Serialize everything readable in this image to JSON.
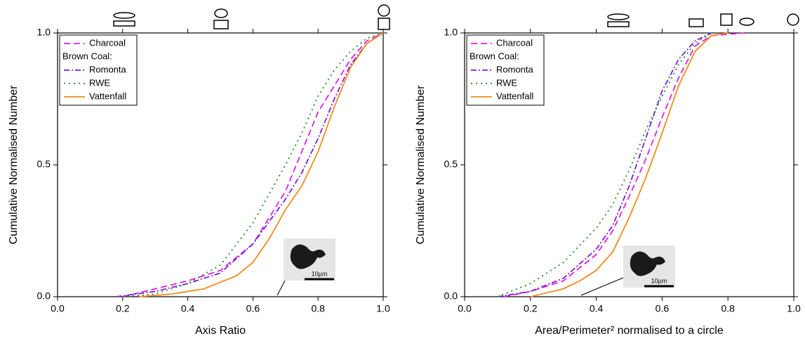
{
  "chart_data": [
    {
      "type": "line",
      "xlabel": "Axis Ratio",
      "ylabel": "Cumulative Normalised Number",
      "xlim": [
        0,
        1
      ],
      "ylim": [
        0,
        1
      ],
      "xticks": [
        {
          "value": 0,
          "label": "0.0"
        },
        0.2,
        0.4,
        0.6,
        0.8,
        {
          "value": 1,
          "label": "1.0"
        }
      ],
      "yticks": [
        {
          "value": 0,
          "label": "0.0"
        },
        0.5,
        {
          "value": 1,
          "label": "1.0"
        }
      ],
      "legend": "upper left",
      "legend_group_label": "Brown Coal:",
      "inset_scale_label": "10µm",
      "series": [
        {
          "name": "Charcoal",
          "color": "#e020e0",
          "dash": "dashed",
          "x": [
            0.2,
            0.3,
            0.4,
            0.5,
            0.6,
            0.7,
            0.75,
            0.8,
            0.85,
            0.9,
            0.95,
            1.0
          ],
          "values": [
            0,
            0.03,
            0.06,
            0.1,
            0.2,
            0.4,
            0.55,
            0.7,
            0.8,
            0.9,
            0.97,
            1.0
          ]
        },
        {
          "name": "Romonta",
          "color": "#7a1fe0",
          "dash": "dashdot",
          "x": [
            0.18,
            0.3,
            0.4,
            0.5,
            0.6,
            0.7,
            0.75,
            0.8,
            0.85,
            0.9,
            0.95,
            1.0
          ],
          "values": [
            0,
            0.02,
            0.05,
            0.09,
            0.2,
            0.37,
            0.47,
            0.6,
            0.75,
            0.88,
            0.96,
            1.0
          ]
        },
        {
          "name": "RWE",
          "color": "#1e8c1e",
          "dash": "dotted",
          "x": [
            0.2,
            0.3,
            0.4,
            0.5,
            0.6,
            0.7,
            0.75,
            0.8,
            0.85,
            0.9,
            0.95,
            1.0
          ],
          "values": [
            0,
            0.01,
            0.05,
            0.12,
            0.28,
            0.5,
            0.62,
            0.76,
            0.86,
            0.93,
            0.98,
            1.0
          ]
        },
        {
          "name": "Vattenfall",
          "color": "#f08c1e",
          "dash": "solid",
          "x": [
            0.25,
            0.35,
            0.45,
            0.55,
            0.6,
            0.65,
            0.7,
            0.75,
            0.8,
            0.85,
            0.9,
            0.95,
            1.0
          ],
          "values": [
            0,
            0.01,
            0.03,
            0.08,
            0.13,
            0.22,
            0.33,
            0.42,
            0.55,
            0.72,
            0.87,
            0.96,
            1.0
          ]
        }
      ]
    },
    {
      "type": "line",
      "xlabel": "Area/Perimeter² normalised to a circle",
      "ylabel": "Cumulative Normalised Number",
      "xlim": [
        0,
        1
      ],
      "ylim": [
        0,
        1
      ],
      "xticks": [
        {
          "value": 0,
          "label": "0.0"
        },
        0.2,
        0.4,
        0.6,
        0.8,
        {
          "value": 1,
          "label": "1.0"
        }
      ],
      "yticks": [
        {
          "value": 0,
          "label": "0.0"
        },
        0.5,
        {
          "value": 1,
          "label": "1.0"
        }
      ],
      "legend": "upper left",
      "legend_group_label": "Brown Coal:",
      "inset_scale_label": "10µm",
      "series": [
        {
          "name": "Charcoal",
          "color": "#e020e0",
          "dash": "dashed",
          "x": [
            0.12,
            0.2,
            0.3,
            0.4,
            0.45,
            0.5,
            0.55,
            0.6,
            0.65,
            0.7,
            0.75,
            0.85
          ],
          "values": [
            0,
            0.02,
            0.06,
            0.16,
            0.25,
            0.38,
            0.52,
            0.68,
            0.83,
            0.95,
            0.99,
            1.0
          ]
        },
        {
          "name": "Romonta",
          "color": "#7a1fe0",
          "dash": "dashdot",
          "x": [
            0.1,
            0.2,
            0.3,
            0.4,
            0.45,
            0.5,
            0.55,
            0.6,
            0.65,
            0.7,
            0.75
          ],
          "values": [
            0,
            0.02,
            0.07,
            0.18,
            0.27,
            0.42,
            0.6,
            0.78,
            0.9,
            0.97,
            1.0
          ]
        },
        {
          "name": "RWE",
          "color": "#1e8c1e",
          "dash": "dotted",
          "x": [
            0.1,
            0.2,
            0.3,
            0.4,
            0.45,
            0.5,
            0.55,
            0.6,
            0.65,
            0.7,
            0.75
          ],
          "values": [
            0,
            0.05,
            0.13,
            0.26,
            0.35,
            0.48,
            0.63,
            0.76,
            0.88,
            0.96,
            1.0
          ]
        },
        {
          "name": "Vattenfall",
          "color": "#f08c1e",
          "dash": "solid",
          "x": [
            0.2,
            0.3,
            0.35,
            0.4,
            0.45,
            0.5,
            0.55,
            0.6,
            0.65,
            0.7,
            0.75,
            0.8
          ],
          "values": [
            0,
            0.03,
            0.06,
            0.1,
            0.17,
            0.3,
            0.45,
            0.62,
            0.8,
            0.93,
            0.99,
            1.0
          ]
        }
      ]
    }
  ]
}
